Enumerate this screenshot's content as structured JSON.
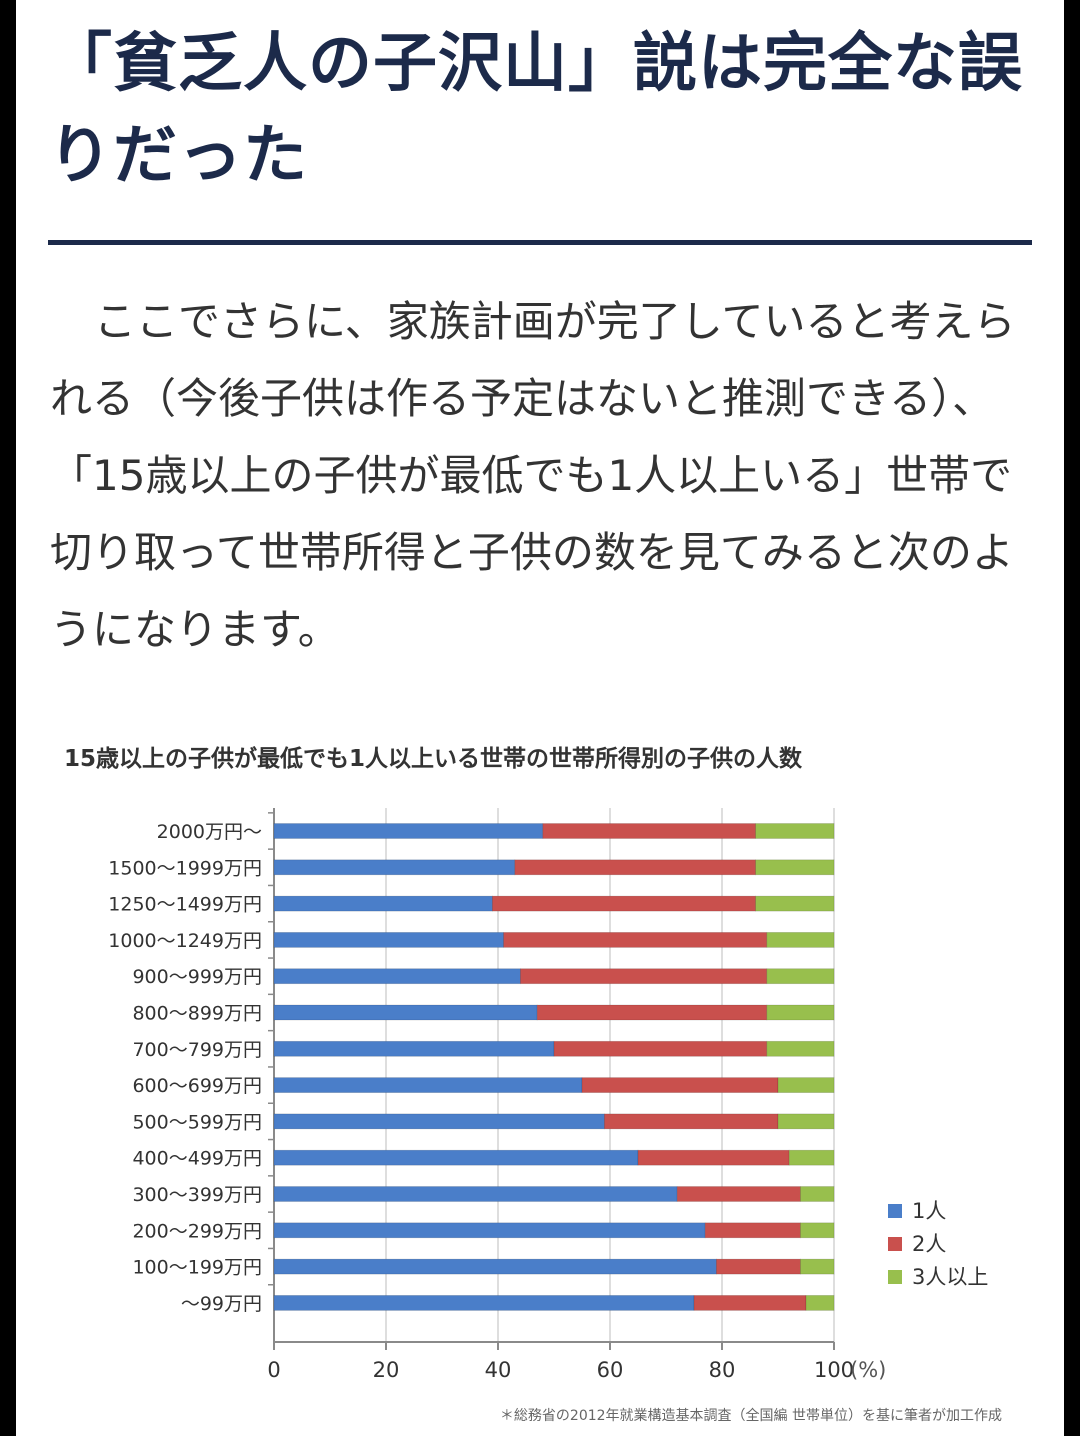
{
  "article": {
    "headline": "「貧乏人の子沢山」説は完全な誤りだった",
    "paragraph": "ここでさらに、家族計画が完了していると考えられる（今後子供は作る予定はないと推測できる）、「15歳以上の子供が最低でも1人以上いる」世帯で切り取って世帯所得と子供の数を見てみると次のようになります。"
  },
  "colors": {
    "headline": "#1c2a4a",
    "series": [
      "#4a7ec9",
      "#c9504d",
      "#98bf4d"
    ]
  },
  "chart_data": {
    "type": "bar",
    "orientation": "horizontal",
    "stacked": true,
    "title": "15歳以上の子供が最低でも1人以上いる世帯の世帯所得別の子供の人数",
    "categories": [
      "2000万円〜",
      "1500〜1999万円",
      "1250〜1499万円",
      "1000〜1249万円",
      "900〜999万円",
      "800〜899万円",
      "700〜799万円",
      "600〜699万円",
      "500〜599万円",
      "400〜499万円",
      "300〜399万円",
      "200〜299万円",
      "100〜199万円",
      "〜99万円"
    ],
    "series": [
      {
        "name": "1人",
        "values": [
          48,
          43,
          39,
          41,
          44,
          47,
          50,
          55,
          59,
          65,
          72,
          77,
          79,
          75
        ]
      },
      {
        "name": "2人",
        "values": [
          38,
          43,
          47,
          47,
          44,
          41,
          38,
          35,
          31,
          27,
          22,
          17,
          15,
          20
        ]
      },
      {
        "name": "3人以上",
        "values": [
          14,
          14,
          14,
          12,
          12,
          12,
          12,
          10,
          10,
          8,
          6,
          6,
          6,
          5
        ]
      }
    ],
    "xlim": [
      0,
      100
    ],
    "xticks": [
      0,
      20,
      40,
      60,
      80,
      100
    ],
    "xunit": "(%)",
    "grid": true,
    "legend": "right",
    "source_note": "＊総務省の2012年就業構造基本調査（全国編 世帯単位）を基に筆者が加工作成"
  }
}
